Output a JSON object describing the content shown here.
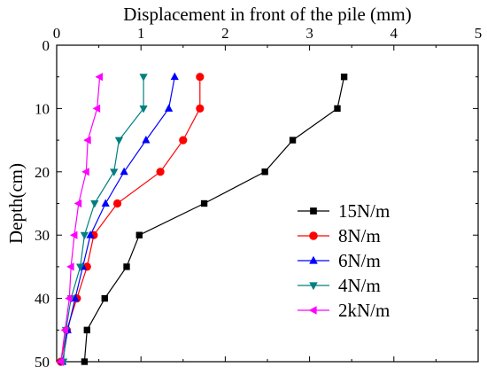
{
  "chart_data": {
    "type": "line",
    "xlabel": "Displacement in front of the pile (mm)",
    "ylabel": "Depth(cm)",
    "xlim": [
      0,
      5
    ],
    "ylim": [
      0,
      50
    ],
    "x_axis_position": "top",
    "y_axis_inverted": true,
    "xticks": [
      "0",
      "1",
      "2",
      "3",
      "4",
      "5"
    ],
    "yticks": [
      "0",
      "10",
      "20",
      "30",
      "40",
      "50"
    ],
    "grid": false,
    "legend_position": "right",
    "series": [
      {
        "name": "15N/m",
        "color": "#000000",
        "marker": "square",
        "points": [
          [
            3.41,
            5
          ],
          [
            3.33,
            10
          ],
          [
            2.8,
            15
          ],
          [
            2.47,
            20
          ],
          [
            1.75,
            25
          ],
          [
            0.98,
            30
          ],
          [
            0.83,
            35
          ],
          [
            0.57,
            40
          ],
          [
            0.36,
            45
          ],
          [
            0.33,
            50
          ]
        ]
      },
      {
        "name": "8N/m",
        "color": "#ff0000",
        "marker": "circle",
        "points": [
          [
            1.7,
            5
          ],
          [
            1.7,
            10
          ],
          [
            1.5,
            15
          ],
          [
            1.23,
            20
          ],
          [
            0.72,
            25
          ],
          [
            0.44,
            30
          ],
          [
            0.36,
            35
          ],
          [
            0.24,
            40
          ],
          [
            0.12,
            45
          ],
          [
            0.05,
            50
          ]
        ]
      },
      {
        "name": "6N/m",
        "color": "#0000ff",
        "marker": "triangle-up",
        "points": [
          [
            1.4,
            5
          ],
          [
            1.33,
            10
          ],
          [
            1.06,
            15
          ],
          [
            0.8,
            20
          ],
          [
            0.58,
            25
          ],
          [
            0.4,
            30
          ],
          [
            0.31,
            35
          ],
          [
            0.22,
            40
          ],
          [
            0.13,
            45
          ],
          [
            0.07,
            50
          ]
        ]
      },
      {
        "name": "4N/m",
        "color": "#008080",
        "marker": "triangle-down",
        "points": [
          [
            1.03,
            5
          ],
          [
            1.03,
            10
          ],
          [
            0.74,
            15
          ],
          [
            0.68,
            20
          ],
          [
            0.45,
            25
          ],
          [
            0.33,
            30
          ],
          [
            0.28,
            35
          ],
          [
            0.17,
            40
          ],
          [
            0.11,
            45
          ],
          [
            0.08,
            50
          ]
        ]
      },
      {
        "name": "2kN/m",
        "color": "#ff00ff",
        "marker": "triangle-left",
        "points": [
          [
            0.51,
            5
          ],
          [
            0.48,
            10
          ],
          [
            0.37,
            15
          ],
          [
            0.35,
            20
          ],
          [
            0.26,
            25
          ],
          [
            0.21,
            30
          ],
          [
            0.17,
            35
          ],
          [
            0.15,
            40
          ],
          [
            0.1,
            45
          ],
          [
            0.05,
            50
          ]
        ]
      }
    ]
  }
}
